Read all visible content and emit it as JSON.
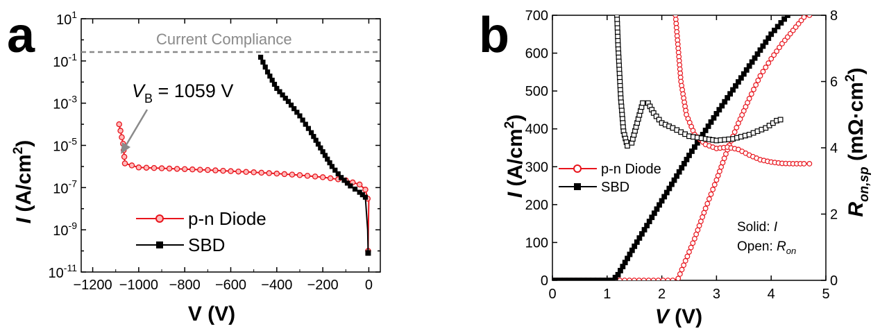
{
  "panels": [
    {
      "label": "a"
    },
    {
      "label": "b"
    }
  ],
  "chart_data": [
    {
      "type": "line",
      "panel": "a",
      "xlabel": "V (V)",
      "ylabel_symbol": "I",
      "ylabel_unit": " (A/cm",
      "ylabel_sup": "2",
      "ylabel_close": ")",
      "xlim": [
        -1250,
        50
      ],
      "ylim_log10": [
        -11,
        1
      ],
      "y_scale": "log",
      "x_ticks": [
        -1200,
        -1000,
        -800,
        -600,
        -400,
        -200,
        0
      ],
      "x_tick_labels": [
        "−1200",
        "−1000",
        "−800",
        "−600",
        "−400",
        "−200",
        "0"
      ],
      "y_ticks_exp": [
        1,
        -1,
        -3,
        -5,
        -7,
        -9,
        -11
      ],
      "y_tick_base": "10",
      "y_tick_sups": [
        "1",
        "-1",
        "-3",
        "-5",
        "-7",
        "-9",
        "-11"
      ],
      "compliance": {
        "label": "Current Compliance",
        "y": 0.2
      },
      "annotation": {
        "prefix": "V",
        "sub": "B",
        "text": " = 1059 V",
        "x": -1059,
        "y": 1.2e-06
      },
      "legend_position": "bottom-center",
      "series": [
        {
          "name": "p-n Diode",
          "color": "#e8141c",
          "marker": "circle-open",
          "points": [
            [
              -1085,
              0.0001
            ],
            [
              -1068,
              1.2e-05
            ],
            [
              -1060,
              1.4e-06
            ],
            [
              -1000,
              9e-07
            ],
            [
              -900,
              8.2e-07
            ],
            [
              -800,
              7.5e-07
            ],
            [
              -700,
              6.8e-07
            ],
            [
              -600,
              6e-07
            ],
            [
              -500,
              5.3e-07
            ],
            [
              -400,
              4.6e-07
            ],
            [
              -300,
              3.9e-07
            ],
            [
              -200,
              3.1e-07
            ],
            [
              -100,
              2.2e-07
            ],
            [
              -40,
              1.4e-07
            ],
            [
              -15,
              8e-08
            ],
            [
              -5,
              3e-08
            ],
            [
              0,
              2.5e-08
            ],
            [
              -2,
              1e-09
            ],
            [
              -3,
              1e-10
            ]
          ]
        },
        {
          "name": "SBD",
          "color": "#000000",
          "marker": "square-filled",
          "points": [
            [
              -470,
              0.15
            ],
            [
              -440,
              0.03
            ],
            [
              -400,
              0.005
            ],
            [
              -350,
              0.0012
            ],
            [
              -300,
              0.00025
            ],
            [
              -250,
              4e-05
            ],
            [
              -200,
              5e-06
            ],
            [
              -160,
              1e-06
            ],
            [
              -120,
              3e-07
            ],
            [
              -80,
              1.2e-07
            ],
            [
              -40,
              6e-08
            ],
            [
              -15,
              3.5e-08
            ],
            [
              -5,
              1e-09
            ],
            [
              -3,
              8e-11
            ]
          ]
        }
      ]
    },
    {
      "type": "line",
      "panel": "b",
      "xlabel": "V (V)",
      "ylabel_symbol": "I",
      "ylabel_unit": " (A/cm",
      "ylabel_sup": "2",
      "ylabel_close": ")",
      "y2label_symbol": "R",
      "y2label_sub": "on,sp",
      "y2label_unit": " (mΩ·cm",
      "y2label_sup": "2",
      "y2label_close": ")",
      "xlim": [
        0,
        5
      ],
      "ylim": [
        0,
        700
      ],
      "y2lim": [
        0,
        8
      ],
      "x_ticks": [
        0,
        1,
        2,
        3,
        4,
        5
      ],
      "y_ticks": [
        0,
        100,
        200,
        300,
        400,
        500,
        600,
        700
      ],
      "y2_ticks": [
        0,
        2,
        4,
        6,
        8
      ],
      "note": {
        "solid": "Solid: ",
        "solid_sym": "I",
        "open": "Open: ",
        "open_sym": "R",
        "open_sub": "on"
      },
      "legend_position": "center-left",
      "series": [
        {
          "name": "p-n Diode",
          "color": "#e8141c",
          "kind": "I",
          "style": "solid",
          "points": [
            [
              0,
              0
            ],
            [
              2.2,
              0
            ],
            [
              2.3,
              5
            ],
            [
              2.4,
              40
            ],
            [
              2.6,
              110
            ],
            [
              2.8,
              190
            ],
            [
              3.0,
              265
            ],
            [
              3.2,
              345
            ],
            [
              3.4,
              415
            ],
            [
              3.6,
              480
            ],
            [
              3.8,
              540
            ],
            [
              4.0,
              585
            ],
            [
              4.2,
              625
            ],
            [
              4.4,
              660
            ],
            [
              4.6,
              695
            ],
            [
              4.7,
              700
            ]
          ]
        },
        {
          "name": "SBD",
          "color": "#000000",
          "kind": "I",
          "style": "solid",
          "points": [
            [
              0,
              0
            ],
            [
              1.1,
              0
            ],
            [
              1.2,
              15
            ],
            [
              1.5,
              90
            ],
            [
              2.0,
              210
            ],
            [
              2.5,
              330
            ],
            [
              3.0,
              440
            ],
            [
              3.5,
              545
            ],
            [
              4.0,
              650
            ],
            [
              4.3,
              700
            ]
          ]
        },
        {
          "name": "p-n Diode",
          "color": "#e8141c",
          "kind": "R_on",
          "style": "open",
          "points": [
            [
              2.25,
              8
            ],
            [
              2.35,
              6
            ],
            [
              2.45,
              5
            ],
            [
              2.6,
              4.4
            ],
            [
              2.8,
              4.1
            ],
            [
              3.0,
              3.98
            ],
            [
              3.2,
              4.02
            ],
            [
              3.4,
              3.95
            ],
            [
              3.6,
              3.78
            ],
            [
              3.8,
              3.64
            ],
            [
              4.0,
              3.57
            ],
            [
              4.2,
              3.53
            ],
            [
              4.4,
              3.52
            ],
            [
              4.6,
              3.52
            ],
            [
              4.7,
              3.52
            ]
          ]
        },
        {
          "name": "SBD",
          "color": "#000000",
          "kind": "R_on",
          "style": "open",
          "points": [
            [
              1.18,
              8
            ],
            [
              1.2,
              7.1
            ],
            [
              1.25,
              5.5
            ],
            [
              1.3,
              4.5
            ],
            [
              1.37,
              4.06
            ],
            [
              1.45,
              4.15
            ],
            [
              1.55,
              4.75
            ],
            [
              1.65,
              5.35
            ],
            [
              1.75,
              5.35
            ],
            [
              1.85,
              5.05
            ],
            [
              2.0,
              4.75
            ],
            [
              2.2,
              4.6
            ],
            [
              2.5,
              4.35
            ],
            [
              2.8,
              4.27
            ],
            [
              3.0,
              4.22
            ],
            [
              3.3,
              4.27
            ],
            [
              3.6,
              4.4
            ],
            [
              3.9,
              4.6
            ],
            [
              4.1,
              4.82
            ],
            [
              4.17,
              4.85
            ]
          ]
        }
      ]
    }
  ]
}
